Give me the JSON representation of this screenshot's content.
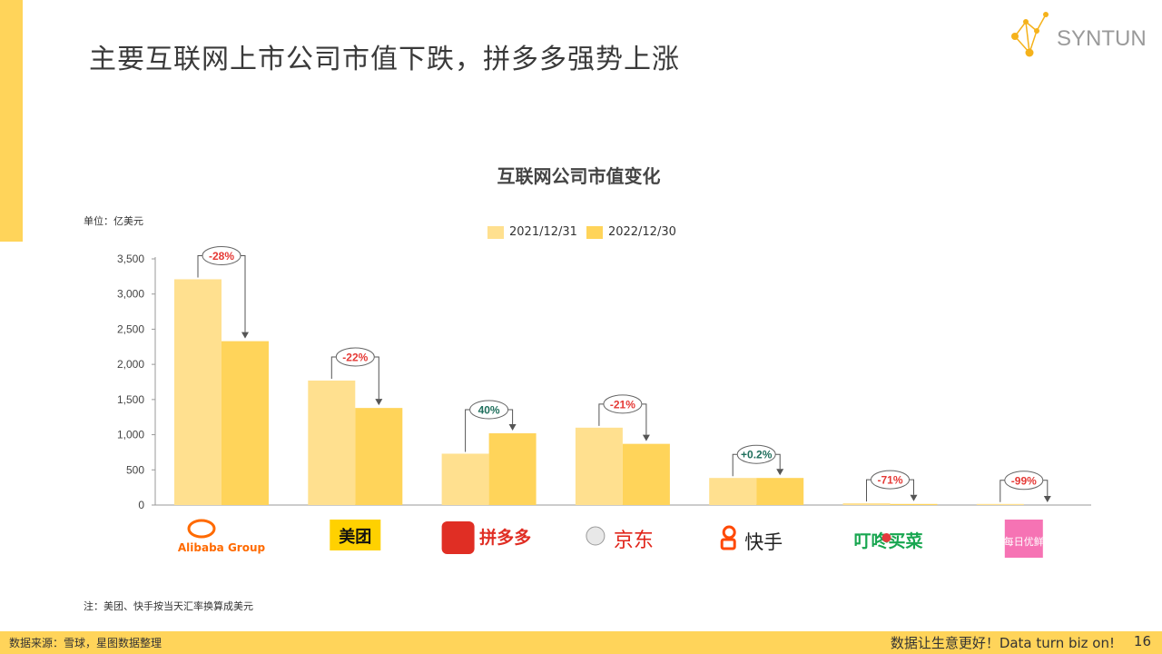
{
  "page": {
    "title": "主要互联网上市公司市值下跌，拼多多强势上涨",
    "brand": "SYNTUN",
    "note": "注：美团、快手按当天汇率换算成美元",
    "source": "数据来源：雪球，星图数据整理",
    "slogan": "数据让生意更好！Data turn biz on!",
    "page_number": "16"
  },
  "colors": {
    "accent": "#FFD45A",
    "series_2021": "#FFE08F",
    "series_2022": "#FFD45A",
    "negative": "#E53935",
    "positive": "#1F6F5C"
  },
  "chart_data": {
    "type": "bar",
    "title": "互联网公司市值变化",
    "unit_label": "单位：亿美元",
    "categories": [
      "阿里巴巴",
      "美团",
      "拼多多",
      "京东",
      "快手",
      "叮咚买菜",
      "每日优鲜"
    ],
    "series": [
      {
        "name": "2021/12/31",
        "values": [
          3210,
          1770,
          730,
          1100,
          385,
          25,
          2
        ]
      },
      {
        "name": "2022/12/30",
        "values": [
          2330,
          1380,
          1020,
          870,
          385,
          7,
          0
        ]
      }
    ],
    "changes": [
      "-28%",
      "-22%",
      "40%",
      "-21%",
      "+0.2%",
      "-71%",
      "-99%"
    ],
    "ylim": [
      0,
      3500
    ],
    "yticks": [
      0,
      500,
      1000,
      1500,
      2000,
      2500,
      3000,
      3500
    ],
    "ytick_labels": [
      "0",
      "500",
      "1,000",
      "1,500",
      "2,000",
      "2,500",
      "3,000",
      "3,500"
    ],
    "grid": false,
    "legend_position": "top"
  },
  "logos": [
    {
      "icon": "alibaba-logo",
      "text": "Alibaba Group"
    },
    {
      "icon": "meituan-logo",
      "text": "美团"
    },
    {
      "icon": "pinduoduo-logo",
      "text": "拼多多"
    },
    {
      "icon": "jd-logo",
      "text": "京东"
    },
    {
      "icon": "kuaishou-logo",
      "text": "快手"
    },
    {
      "icon": "dingdong-logo",
      "text": "叮咚买菜"
    },
    {
      "icon": "missfresh-logo",
      "text": "每日优鲜"
    }
  ]
}
